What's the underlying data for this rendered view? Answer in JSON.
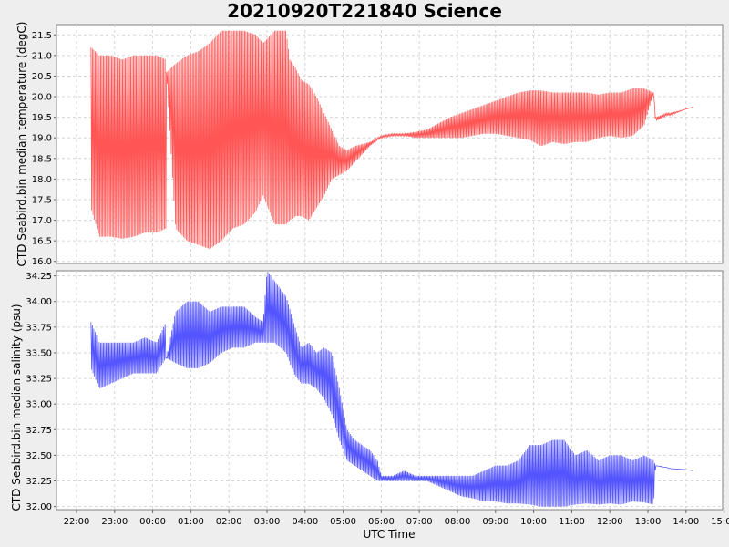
{
  "chart_data": [
    {
      "type": "line",
      "title": "20210920T221840 Science",
      "xlabel": "UTC Time",
      "ylabel": "CTD Seabird.bin median temperature (degC)",
      "ylim": [
        15.95,
        21.75
      ],
      "yticks": [
        "16.0",
        "16.5",
        "17.0",
        "17.5",
        "18.0",
        "18.5",
        "19.0",
        "19.5",
        "20.0",
        "20.5",
        "21.0",
        "21.5"
      ],
      "xticks": [
        "22:00",
        "23:00",
        "00:00",
        "01:00",
        "02:00",
        "03:00",
        "04:00",
        "05:00",
        "06:00",
        "07:00",
        "08:00",
        "09:00",
        "10:00",
        "11:00",
        "12:00",
        "13:00",
        "14:00",
        "15:00"
      ],
      "grid": true,
      "color": "#ff5555",
      "series": [
        {
          "x_hours": [
            22.38,
            22.6,
            22.9,
            23.2,
            23.5,
            23.8,
            24.1,
            24.35,
            24.36,
            24.6,
            24.9,
            25.2,
            25.5,
            25.8,
            26.1,
            26.4,
            26.7,
            26.9,
            27.2,
            27.5,
            27.6,
            27.75,
            27.9,
            28.1,
            28.3,
            28.5,
            28.7,
            28.9,
            29.1,
            29.3,
            29.5,
            29.7,
            29.9,
            30.0,
            30.3,
            30.6,
            30.9,
            31.2,
            31.5,
            31.8,
            32.1,
            32.4,
            32.7,
            33.0,
            33.3,
            33.6,
            33.9,
            34.2,
            34.5,
            34.8,
            35.1,
            35.4,
            35.7,
            36.0,
            36.3,
            36.6,
            36.9,
            37.15,
            37.2,
            37.5,
            37.6,
            38.0,
            38.2
          ],
          "upper": [
            21.2,
            21.0,
            21.0,
            20.9,
            21.0,
            21.0,
            21.0,
            20.9,
            20.6,
            20.8,
            21.0,
            21.1,
            21.3,
            21.6,
            21.6,
            21.6,
            21.5,
            21.3,
            21.6,
            21.6,
            20.9,
            20.7,
            20.4,
            20.3,
            20.0,
            19.6,
            19.2,
            18.8,
            18.7,
            18.8,
            18.85,
            18.9,
            19.0,
            19.05,
            19.1,
            19.1,
            19.15,
            19.2,
            19.35,
            19.5,
            19.6,
            19.7,
            19.8,
            19.9,
            20.0,
            20.1,
            20.15,
            20.15,
            20.1,
            20.1,
            20.1,
            20.1,
            20.05,
            20.1,
            20.1,
            20.2,
            20.2,
            20.1,
            19.5,
            19.6,
            19.6,
            19.7,
            19.75
          ],
          "lower": [
            17.3,
            16.6,
            16.6,
            16.55,
            16.6,
            16.7,
            16.7,
            16.8,
            20.6,
            16.8,
            16.5,
            16.4,
            16.3,
            16.5,
            16.8,
            16.9,
            17.2,
            17.6,
            16.9,
            16.9,
            17.0,
            17.1,
            17.1,
            17.0,
            17.3,
            17.6,
            18.0,
            18.1,
            18.2,
            18.4,
            18.6,
            18.8,
            18.95,
            19.0,
            19.05,
            19.05,
            19.0,
            19.0,
            19.0,
            19.0,
            19.0,
            19.05,
            19.1,
            19.1,
            19.05,
            19.0,
            18.95,
            18.8,
            18.9,
            18.85,
            18.9,
            18.9,
            19.0,
            19.05,
            19.0,
            19.05,
            19.3,
            20.1,
            19.4,
            19.55,
            19.55,
            19.7,
            19.75
          ]
        }
      ]
    },
    {
      "type": "line",
      "title": "",
      "xlabel": "UTC Time",
      "ylabel": "CTD Seabird.bin median salinity (psu)",
      "ylim": [
        31.97,
        34.3
      ],
      "yticks": [
        "32.00",
        "32.25",
        "32.50",
        "32.75",
        "33.00",
        "33.25",
        "33.50",
        "33.75",
        "34.00",
        "34.25"
      ],
      "xticks": [
        "22:00",
        "23:00",
        "00:00",
        "01:00",
        "02:00",
        "03:00",
        "04:00",
        "05:00",
        "06:00",
        "07:00",
        "08:00",
        "09:00",
        "10:00",
        "11:00",
        "12:00",
        "13:00",
        "14:00",
        "15:00"
      ],
      "grid": true,
      "color": "#5555ff",
      "series": [
        {
          "x_hours": [
            22.38,
            22.6,
            22.9,
            23.2,
            23.5,
            23.8,
            24.1,
            24.35,
            24.36,
            24.6,
            24.9,
            25.2,
            25.5,
            25.8,
            26.1,
            26.4,
            26.7,
            26.9,
            27.0,
            27.2,
            27.5,
            27.7,
            27.9,
            28.1,
            28.3,
            28.5,
            28.7,
            28.9,
            29.1,
            29.3,
            29.5,
            29.7,
            29.9,
            30.0,
            30.3,
            30.6,
            30.9,
            31.2,
            31.5,
            31.8,
            32.1,
            32.4,
            32.7,
            33.0,
            33.3,
            33.6,
            33.9,
            34.2,
            34.5,
            34.8,
            35.1,
            35.4,
            35.7,
            36.0,
            36.3,
            36.6,
            36.9,
            37.15,
            37.2,
            37.5,
            37.6,
            38.0,
            38.2
          ],
          "upper": [
            33.8,
            33.6,
            33.6,
            33.6,
            33.6,
            33.65,
            33.6,
            33.8,
            33.45,
            33.9,
            34.0,
            34.0,
            33.9,
            33.95,
            33.95,
            33.95,
            33.85,
            33.8,
            34.3,
            34.2,
            34.05,
            33.8,
            33.55,
            33.6,
            33.5,
            33.55,
            33.5,
            33.15,
            32.75,
            32.65,
            32.6,
            32.55,
            32.45,
            32.3,
            32.3,
            32.35,
            32.3,
            32.3,
            32.3,
            32.3,
            32.3,
            32.3,
            32.35,
            32.4,
            32.4,
            32.45,
            32.6,
            32.6,
            32.65,
            32.65,
            32.5,
            32.55,
            32.45,
            32.5,
            32.5,
            32.45,
            32.5,
            32.45,
            32.4,
            32.38,
            32.37,
            32.36,
            32.35
          ],
          "lower": [
            33.35,
            33.15,
            33.2,
            33.25,
            33.3,
            33.3,
            33.3,
            33.45,
            33.45,
            33.4,
            33.35,
            33.35,
            33.4,
            33.5,
            33.55,
            33.55,
            33.6,
            33.6,
            33.6,
            33.6,
            33.5,
            33.3,
            33.2,
            33.2,
            33.15,
            33.05,
            32.9,
            32.65,
            32.45,
            32.4,
            32.35,
            32.3,
            32.25,
            32.25,
            32.25,
            32.25,
            32.25,
            32.25,
            32.2,
            32.15,
            32.1,
            32.08,
            32.05,
            32.05,
            32.03,
            32.03,
            32.02,
            32.0,
            32.0,
            32.0,
            32.02,
            32.03,
            32.02,
            32.03,
            32.02,
            32.05,
            32.04,
            32.02,
            32.4,
            32.38,
            32.37,
            32.36,
            32.35
          ]
        }
      ]
    }
  ]
}
